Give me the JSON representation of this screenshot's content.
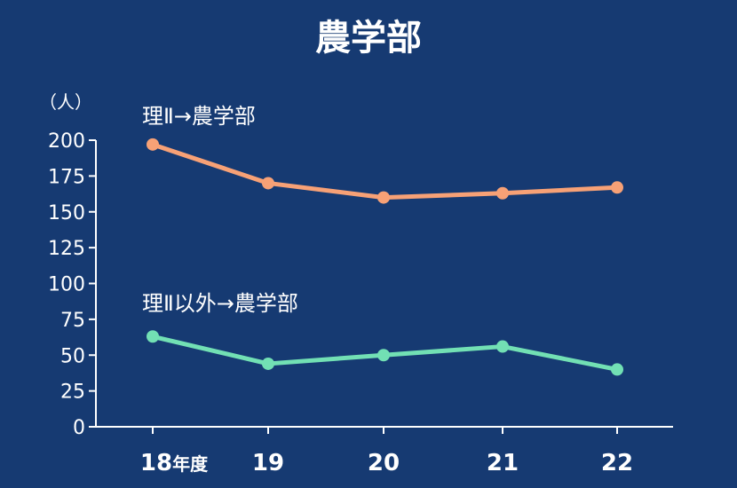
{
  "chart_data": {
    "type": "line",
    "title": "農学部",
    "unit_label": "（人）",
    "categories": [
      "18",
      "19",
      "20",
      "21",
      "22"
    ],
    "first_category_suffix": "年度",
    "yticks": [
      "200",
      "175",
      "150",
      "125",
      "100",
      "75",
      "50",
      "25",
      "0"
    ],
    "ylim": [
      0,
      200
    ],
    "grid": false,
    "series": [
      {
        "name": "理Ⅱ→農学部",
        "color": "#f7a176",
        "values": [
          197,
          170,
          160,
          163,
          167
        ]
      },
      {
        "name": "理Ⅱ以外→農学部",
        "color": "#72e0b4",
        "values": [
          63,
          44,
          50,
          56,
          40
        ]
      }
    ]
  }
}
